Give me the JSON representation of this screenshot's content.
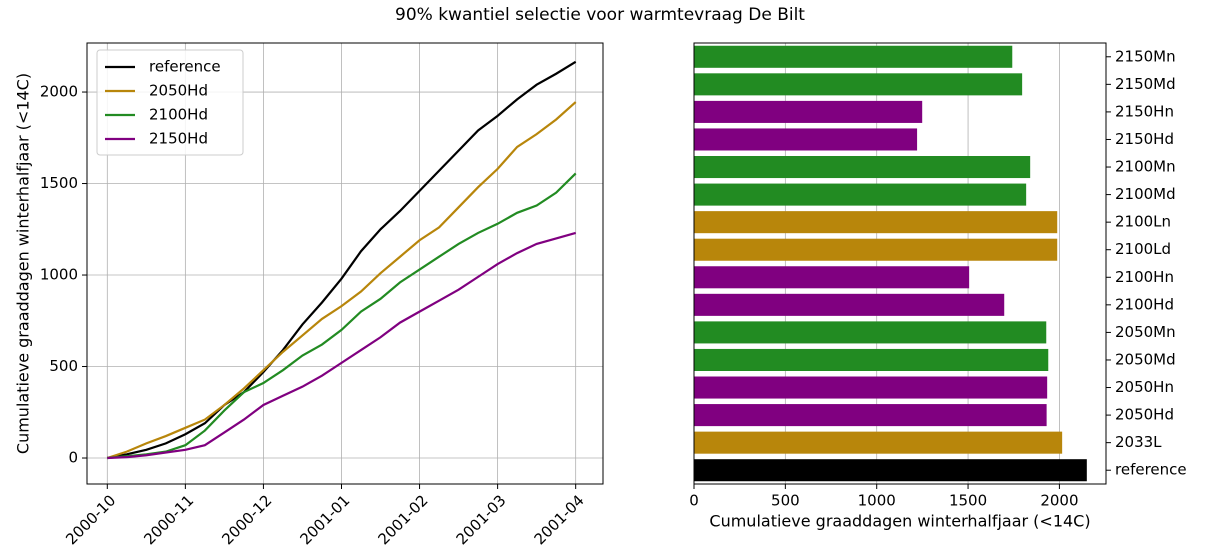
{
  "title": "90% kwantiel selectie voor warmtevraag De Bilt",
  "chart_data": [
    {
      "type": "line",
      "y_label": "Cumulatieve graaddagen winterhalfjaar (<14C)",
      "x": [
        0,
        0.25,
        0.5,
        0.75,
        1,
        1.25,
        1.5,
        1.75,
        2,
        2.25,
        2.5,
        2.75,
        3,
        3.25,
        3.5,
        3.75,
        4,
        4.25,
        4.5,
        4.75,
        5,
        5.25,
        5.5,
        5.75,
        6
      ],
      "xlim": [
        -0.26,
        6.35
      ],
      "xticks": [
        {
          "value": 0,
          "label": "2000-10"
        },
        {
          "value": 1,
          "label": "2000-11"
        },
        {
          "value": 2,
          "label": "2000-12"
        },
        {
          "value": 3,
          "label": "2001-01"
        },
        {
          "value": 4,
          "label": "2001-02"
        },
        {
          "value": 5,
          "label": "2001-03"
        },
        {
          "value": 6,
          "label": "2001-04"
        }
      ],
      "ylim": [
        -142,
        2268
      ],
      "yticks": [
        0,
        500,
        1000,
        1500,
        2000
      ],
      "grid": true,
      "legend": "upper left",
      "series": [
        {
          "name": "reference",
          "color": "#000000",
          "values": [
            0,
            20,
            45,
            80,
            130,
            190,
            290,
            360,
            470,
            590,
            730,
            850,
            980,
            1130,
            1250,
            1350,
            1460,
            1570,
            1680,
            1790,
            1870,
            1960,
            2040,
            2100,
            2165
          ]
        },
        {
          "name": "2050Hd",
          "color": "#b8860b",
          "values": [
            0,
            35,
            80,
            120,
            165,
            210,
            290,
            380,
            480,
            580,
            670,
            760,
            830,
            910,
            1010,
            1100,
            1190,
            1260,
            1370,
            1480,
            1580,
            1700,
            1770,
            1850,
            1945
          ]
        },
        {
          "name": "2100Hd",
          "color": "#228b22",
          "values": [
            0,
            10,
            20,
            35,
            70,
            150,
            260,
            360,
            410,
            480,
            560,
            620,
            700,
            800,
            870,
            960,
            1030,
            1100,
            1170,
            1230,
            1280,
            1340,
            1380,
            1450,
            1555
          ]
        },
        {
          "name": "2150Hd",
          "color": "#800080",
          "values": [
            0,
            5,
            15,
            30,
            45,
            70,
            140,
            210,
            290,
            340,
            390,
            450,
            520,
            590,
            660,
            740,
            800,
            860,
            920,
            990,
            1060,
            1120,
            1170,
            1200,
            1230
          ]
        }
      ]
    },
    {
      "type": "hbar",
      "x_label": "Cumulatieve graaddagen winterhalfjaar (<14C)",
      "categories": [
        "reference",
        "2033L",
        "2050Hd",
        "2050Hn",
        "2050Md",
        "2050Mn",
        "2100Hd",
        "2100Hn",
        "2100Ld",
        "2100Ln",
        "2100Md",
        "2100Mn",
        "2150Hd",
        "2150Hn",
        "2150Md",
        "2150Mn"
      ],
      "values": [
        2150,
        2015,
        1930,
        1933,
        1939,
        1928,
        1698,
        1506,
        1988,
        1988,
        1818,
        1840,
        1221,
        1249,
        1796,
        1742
      ],
      "colors": [
        "#000000",
        "#b8860b",
        "#800080",
        "#800080",
        "#228b22",
        "#228b22",
        "#800080",
        "#800080",
        "#b8860b",
        "#b8860b",
        "#228b22",
        "#228b22",
        "#800080",
        "#800080",
        "#228b22",
        "#228b22"
      ],
      "xlim": [
        0,
        2255
      ],
      "xticks": [
        0,
        500,
        1000,
        1500,
        2000
      ],
      "grid": true
    }
  ]
}
